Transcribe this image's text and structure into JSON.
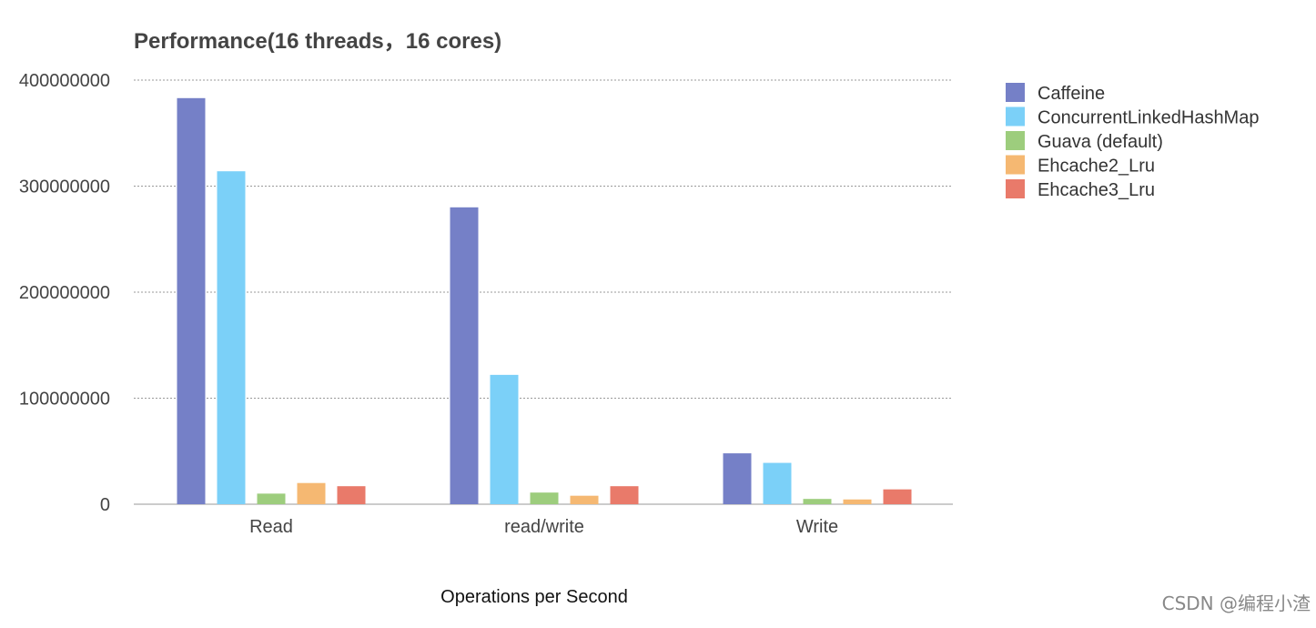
{
  "chart_data": {
    "type": "bar",
    "title": "Performance(16 threads，16 cores)",
    "xlabel": "Operations per Second",
    "ylabel": "",
    "ylim": [
      0,
      400000000
    ],
    "yticks": [
      0,
      100000000,
      200000000,
      300000000,
      400000000
    ],
    "grid": true,
    "legend_position": "right",
    "categories": [
      "Read",
      "read/write",
      "Write"
    ],
    "series": [
      {
        "name": "Caffeine",
        "color": "#7580c7",
        "values": [
          383000000,
          280000000,
          48000000
        ]
      },
      {
        "name": "ConcurrentLinkedHashMap",
        "color": "#7bd0f8",
        "values": [
          314000000,
          122000000,
          39000000
        ]
      },
      {
        "name": "Guava (default)",
        "color": "#9dcd7d",
        "values": [
          10000000,
          11000000,
          5000000
        ]
      },
      {
        "name": "Ehcache2_Lru",
        "color": "#f5b872",
        "values": [
          20000000,
          8000000,
          4500000
        ]
      },
      {
        "name": "Ehcache3_Lru",
        "color": "#e97a6a",
        "values": [
          17000000,
          17000000,
          14000000
        ]
      }
    ]
  },
  "watermark": {
    "text": "CSDN @编程小渣"
  }
}
